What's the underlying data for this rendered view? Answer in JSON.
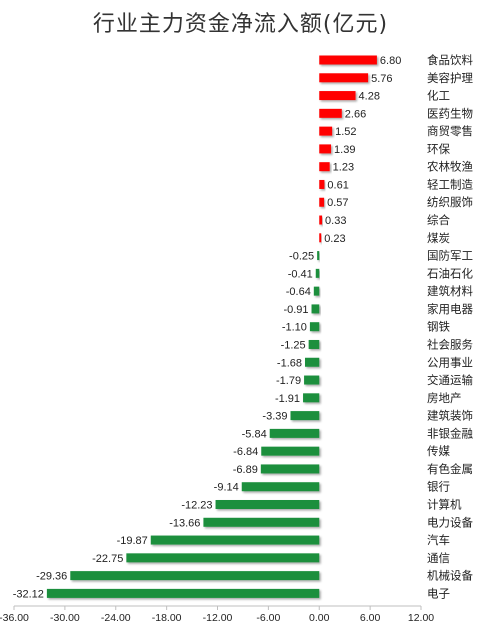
{
  "chart_data": {
    "type": "bar",
    "orientation": "horizontal",
    "title": "行业主力资金净流入额(亿元)",
    "xlim": [
      -36,
      12
    ],
    "xticks": [
      "-36.00",
      "-30.00",
      "-24.00",
      "-18.00",
      "-12.00",
      "-6.00",
      "0.00",
      "6.00",
      "12.00"
    ],
    "grid": false,
    "colors": {
      "positive": "#ff0000",
      "negative": "#1a8f3c"
    },
    "categories": [
      "食品饮料",
      "美容护理",
      "化工",
      "医药生物",
      "商贸零售",
      "环保",
      "农林牧渔",
      "轻工制造",
      "纺织服饰",
      "综合",
      "煤炭",
      "国防军工",
      "石油石化",
      "建筑材料",
      "家用电器",
      "钢铁",
      "社会服务",
      "公用事业",
      "交通运输",
      "房地产",
      "建筑装饰",
      "非银金融",
      "传媒",
      "有色金属",
      "银行",
      "计算机",
      "电力设备",
      "汽车",
      "通信",
      "机械设备",
      "电子"
    ],
    "values": [
      6.8,
      5.76,
      4.28,
      2.66,
      1.52,
      1.39,
      1.23,
      0.61,
      0.57,
      0.33,
      0.23,
      -0.25,
      -0.41,
      -0.64,
      -0.91,
      -1.1,
      -1.25,
      -1.68,
      -1.79,
      -1.91,
      -3.39,
      -5.84,
      -6.84,
      -6.89,
      -9.14,
      -12.23,
      -13.66,
      -19.87,
      -22.75,
      -29.36,
      -32.12
    ],
    "value_labels": [
      "6.80",
      "5.76",
      "4.28",
      "2.66",
      "1.52",
      "1.39",
      "1.23",
      "0.61",
      "0.57",
      "0.33",
      "0.23",
      "-0.25",
      "-0.41",
      "-0.64",
      "-0.91",
      "-1.10",
      "-1.25",
      "-1.68",
      "-1.79",
      "-1.91",
      "-3.39",
      "-5.84",
      "-6.84",
      "-6.89",
      "-9.14",
      "-12.23",
      "-13.66",
      "-19.87",
      "-22.75",
      "-29.36",
      "-32.12"
    ]
  }
}
